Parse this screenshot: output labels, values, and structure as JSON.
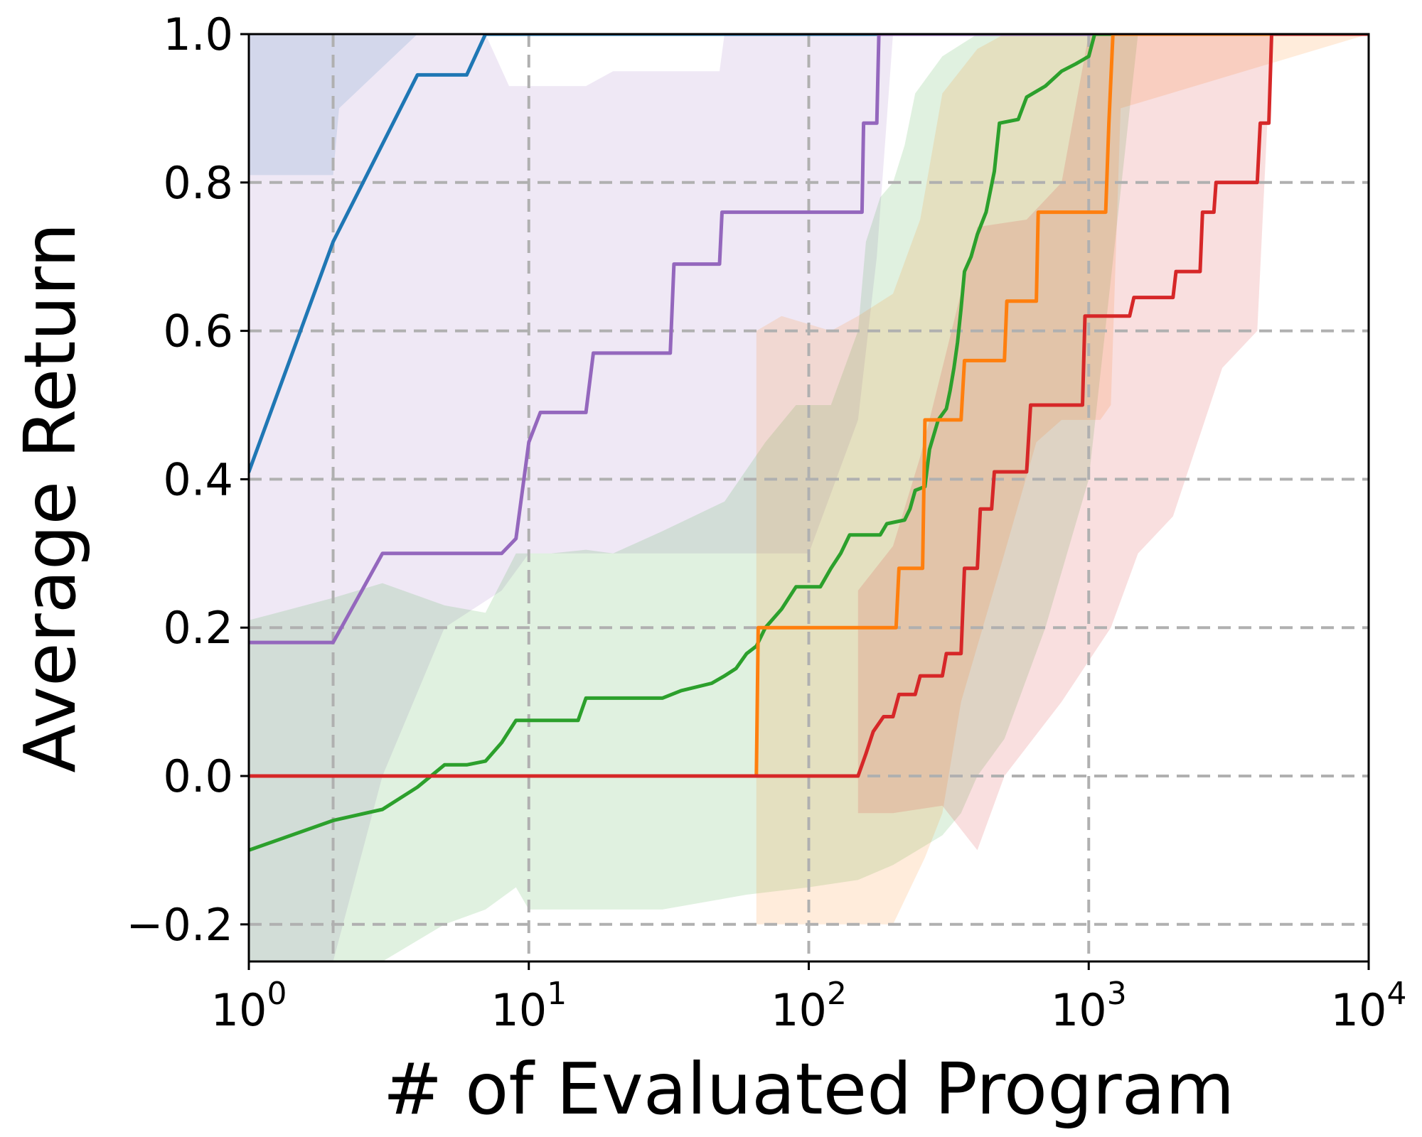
{
  "chart_data": {
    "type": "line",
    "title": "",
    "xlabel": "# of Evaluated Program",
    "ylabel": "Average Return",
    "x_scale": "log",
    "xlim": [
      1,
      10000
    ],
    "ylim": [
      -0.25,
      1.0
    ],
    "grid": true,
    "legend": "none",
    "x_ticks": [
      {
        "value": 1,
        "base": "10",
        "exp": "0"
      },
      {
        "value": 10,
        "base": "10",
        "exp": "1"
      },
      {
        "value": 100,
        "base": "10",
        "exp": "2"
      },
      {
        "value": 1000,
        "base": "10",
        "exp": "3"
      },
      {
        "value": 10000,
        "base": "10",
        "exp": "4"
      }
    ],
    "y_ticks": [
      {
        "value": -0.2,
        "label": "−0.2"
      },
      {
        "value": 0.0,
        "label": "0.0"
      },
      {
        "value": 0.2,
        "label": "0.2"
      },
      {
        "value": 0.4,
        "label": "0.4"
      },
      {
        "value": 0.6,
        "label": "0.6"
      },
      {
        "value": 0.8,
        "label": "0.8"
      },
      {
        "value": 1.0,
        "label": "1.0"
      }
    ],
    "series": [
      {
        "color": "#1f77b4",
        "points": [
          [
            1,
            0.41
          ],
          [
            2,
            0.72
          ],
          [
            4,
            0.945
          ],
          [
            6,
            0.945
          ],
          [
            7,
            1.0
          ],
          [
            10000,
            1.0
          ]
        ],
        "band_upper": [
          [
            1,
            1.0
          ],
          [
            10000,
            1.0
          ]
        ],
        "band_lower": [
          [
            1,
            0.81
          ],
          [
            2,
            0.81
          ],
          [
            2.1,
            0.9
          ],
          [
            4,
            1.0
          ],
          [
            10000,
            1.0
          ]
        ]
      },
      {
        "color": "#9467bd",
        "points": [
          [
            1,
            0.18
          ],
          [
            2,
            0.18
          ],
          [
            3,
            0.3
          ],
          [
            8,
            0.3
          ],
          [
            9,
            0.32
          ],
          [
            10,
            0.45
          ],
          [
            11,
            0.49
          ],
          [
            16,
            0.49
          ],
          [
            17,
            0.57
          ],
          [
            32,
            0.57
          ],
          [
            33,
            0.69
          ],
          [
            48,
            0.69
          ],
          [
            49,
            0.76
          ],
          [
            155,
            0.76
          ],
          [
            157,
            0.88
          ],
          [
            175,
            0.88
          ],
          [
            178,
            1.0
          ],
          [
            10000,
            1.0
          ]
        ],
        "band_upper": [
          [
            1,
            1.0
          ],
          [
            7,
            1.0
          ],
          [
            8.5,
            0.93
          ],
          [
            16,
            0.93
          ],
          [
            20,
            0.95
          ],
          [
            48,
            0.95
          ],
          [
            50,
            1.0
          ],
          [
            10000,
            1.0
          ]
        ],
        "band_lower": [
          [
            1,
            -0.25
          ],
          [
            2,
            -0.25
          ],
          [
            3,
            0.0
          ],
          [
            5,
            0.2
          ],
          [
            8,
            0.25
          ],
          [
            10,
            0.3
          ],
          [
            100,
            0.3
          ],
          [
            150,
            0.48
          ],
          [
            175,
            0.7
          ],
          [
            200,
            1.0
          ],
          [
            10000,
            1.0
          ]
        ]
      },
      {
        "color": "#2ca02c",
        "points": [
          [
            1,
            -0.1
          ],
          [
            2,
            -0.06
          ],
          [
            3,
            -0.045
          ],
          [
            4,
            -0.015
          ],
          [
            5,
            0.015
          ],
          [
            6,
            0.015
          ],
          [
            7,
            0.02
          ],
          [
            8,
            0.045
          ],
          [
            9,
            0.075
          ],
          [
            15,
            0.075
          ],
          [
            16,
            0.105
          ],
          [
            30,
            0.105
          ],
          [
            35,
            0.115
          ],
          [
            45,
            0.125
          ],
          [
            50,
            0.135
          ],
          [
            55,
            0.145
          ],
          [
            60,
            0.165
          ],
          [
            65,
            0.175
          ],
          [
            70,
            0.2
          ],
          [
            80,
            0.225
          ],
          [
            90,
            0.255
          ],
          [
            110,
            0.255
          ],
          [
            120,
            0.28
          ],
          [
            130,
            0.3
          ],
          [
            140,
            0.325
          ],
          [
            180,
            0.325
          ],
          [
            190,
            0.34
          ],
          [
            220,
            0.345
          ],
          [
            230,
            0.36
          ],
          [
            240,
            0.385
          ],
          [
            260,
            0.39
          ],
          [
            270,
            0.44
          ],
          [
            290,
            0.48
          ],
          [
            310,
            0.495
          ],
          [
            320,
            0.52
          ],
          [
            330,
            0.55
          ],
          [
            340,
            0.585
          ],
          [
            350,
            0.63
          ],
          [
            360,
            0.68
          ],
          [
            380,
            0.7
          ],
          [
            400,
            0.73
          ],
          [
            430,
            0.76
          ],
          [
            460,
            0.815
          ],
          [
            480,
            0.88
          ],
          [
            560,
            0.885
          ],
          [
            600,
            0.915
          ],
          [
            700,
            0.93
          ],
          [
            800,
            0.95
          ],
          [
            900,
            0.96
          ],
          [
            1000,
            0.97
          ],
          [
            1050,
            1.0
          ],
          [
            10000,
            1.0
          ]
        ],
        "band_upper": [
          [
            1,
            0.21
          ],
          [
            2,
            0.24
          ],
          [
            3,
            0.26
          ],
          [
            5,
            0.23
          ],
          [
            7,
            0.22
          ],
          [
            9,
            0.3
          ],
          [
            12,
            0.3
          ],
          [
            16,
            0.305
          ],
          [
            20,
            0.3
          ],
          [
            30,
            0.33
          ],
          [
            50,
            0.37
          ],
          [
            70,
            0.45
          ],
          [
            90,
            0.5
          ],
          [
            120,
            0.5
          ],
          [
            150,
            0.6
          ],
          [
            160,
            0.72
          ],
          [
            180,
            0.78
          ],
          [
            200,
            0.8
          ],
          [
            220,
            0.85
          ],
          [
            240,
            0.92
          ],
          [
            300,
            0.97
          ],
          [
            400,
            1.0
          ],
          [
            10000,
            1.0
          ]
        ],
        "band_lower": [
          [
            1,
            -0.25
          ],
          [
            3,
            -0.25
          ],
          [
            5,
            -0.2
          ],
          [
            7,
            -0.18
          ],
          [
            9,
            -0.15
          ],
          [
            10,
            -0.18
          ],
          [
            30,
            -0.18
          ],
          [
            60,
            -0.16
          ],
          [
            100,
            -0.15
          ],
          [
            150,
            -0.14
          ],
          [
            200,
            -0.12
          ],
          [
            300,
            -0.08
          ],
          [
            350,
            -0.05
          ],
          [
            400,
            0.0
          ],
          [
            500,
            0.05
          ],
          [
            700,
            0.2
          ],
          [
            1000,
            0.4
          ],
          [
            1500,
            1.0
          ],
          [
            10000,
            1.0
          ]
        ]
      },
      {
        "color": "#ff7f0e",
        "points": [
          [
            1,
            0.0
          ],
          [
            65,
            0.0
          ],
          [
            66,
            0.2
          ],
          [
            205,
            0.2
          ],
          [
            210,
            0.28
          ],
          [
            255,
            0.28
          ],
          [
            260,
            0.48
          ],
          [
            350,
            0.48
          ],
          [
            360,
            0.56
          ],
          [
            500,
            0.56
          ],
          [
            510,
            0.64
          ],
          [
            650,
            0.64
          ],
          [
            660,
            0.76
          ],
          [
            1150,
            0.76
          ],
          [
            1180,
            0.88
          ],
          [
            1220,
            1.0
          ],
          [
            10000,
            1.0
          ]
        ],
        "band_upper": [
          [
            65,
            0.6
          ],
          [
            80,
            0.62
          ],
          [
            120,
            0.6
          ],
          [
            150,
            0.62
          ],
          [
            200,
            0.65
          ],
          [
            250,
            0.75
          ],
          [
            300,
            0.92
          ],
          [
            400,
            0.98
          ],
          [
            500,
            1.0
          ],
          [
            10000,
            1.0
          ]
        ],
        "band_lower": [
          [
            65,
            -0.2
          ],
          [
            100,
            -0.2
          ],
          [
            150,
            -0.2
          ],
          [
            200,
            -0.2
          ],
          [
            260,
            -0.11
          ],
          [
            300,
            -0.05
          ],
          [
            350,
            0.1
          ],
          [
            500,
            0.3
          ],
          [
            650,
            0.45
          ],
          [
            800,
            0.48
          ],
          [
            1000,
            0.48
          ],
          [
            1100,
            0.48
          ],
          [
            1200,
            0.5
          ],
          [
            1300,
            0.9
          ],
          [
            10000,
            1.0
          ]
        ]
      },
      {
        "color": "#d62728",
        "points": [
          [
            1,
            0.0
          ],
          [
            150,
            0.0
          ],
          [
            160,
            0.03
          ],
          [
            170,
            0.06
          ],
          [
            185,
            0.08
          ],
          [
            200,
            0.08
          ],
          [
            210,
            0.11
          ],
          [
            240,
            0.11
          ],
          [
            250,
            0.135
          ],
          [
            300,
            0.135
          ],
          [
            310,
            0.165
          ],
          [
            350,
            0.165
          ],
          [
            360,
            0.28
          ],
          [
            400,
            0.28
          ],
          [
            410,
            0.36
          ],
          [
            450,
            0.36
          ],
          [
            460,
            0.41
          ],
          [
            600,
            0.41
          ],
          [
            620,
            0.5
          ],
          [
            950,
            0.5
          ],
          [
            970,
            0.62
          ],
          [
            1400,
            0.62
          ],
          [
            1450,
            0.645
          ],
          [
            2000,
            0.645
          ],
          [
            2050,
            0.68
          ],
          [
            2500,
            0.68
          ],
          [
            2550,
            0.76
          ],
          [
            2800,
            0.76
          ],
          [
            2850,
            0.8
          ],
          [
            4000,
            0.8
          ],
          [
            4100,
            0.88
          ],
          [
            4400,
            0.88
          ],
          [
            4500,
            1.0
          ],
          [
            10000,
            1.0
          ]
        ],
        "band_upper": [
          [
            150,
            0.25
          ],
          [
            200,
            0.31
          ],
          [
            250,
            0.43
          ],
          [
            300,
            0.55
          ],
          [
            400,
            0.74
          ],
          [
            600,
            0.75
          ],
          [
            800,
            0.8
          ],
          [
            1000,
            1.0
          ],
          [
            10000,
            1.0
          ]
        ],
        "band_lower": [
          [
            150,
            -0.05
          ],
          [
            200,
            -0.05
          ],
          [
            300,
            -0.04
          ],
          [
            400,
            -0.1
          ],
          [
            500,
            0.0
          ],
          [
            800,
            0.1
          ],
          [
            1200,
            0.2
          ],
          [
            1500,
            0.3
          ],
          [
            2000,
            0.35
          ],
          [
            3000,
            0.55
          ],
          [
            4000,
            0.6
          ],
          [
            4500,
            1.0
          ],
          [
            10000,
            1.0
          ]
        ]
      }
    ]
  }
}
